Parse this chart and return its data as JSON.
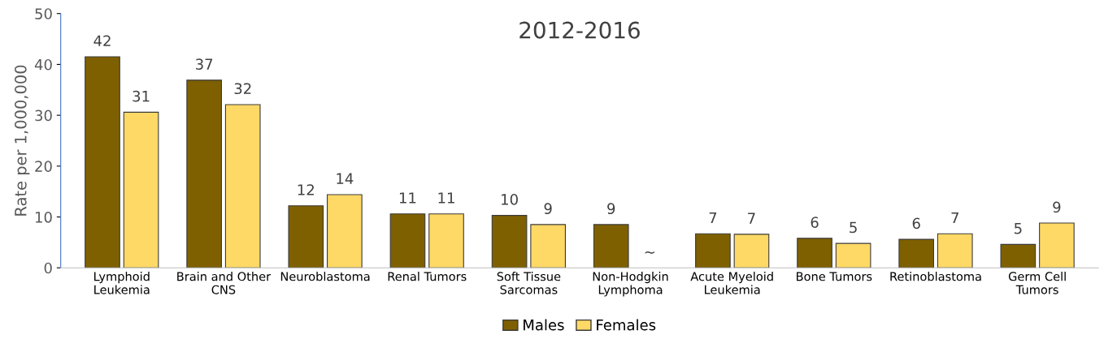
{
  "chart_data": {
    "type": "bar",
    "title": "2012-2016",
    "ylabel": "Rate per 1,000,000",
    "categories": [
      "Lymphoid\nLeukemia",
      "Brain and Other\nCNS",
      "Neuroblastoma",
      "Renal Tumors",
      "Soft Tissue\nSarcomas",
      "Non-Hodgkin\nLymphoma",
      "Acute Myeloid\nLeukemia",
      "Bone Tumors",
      "Retinoblastoma",
      "Germ Cell\nTumors"
    ],
    "series": [
      {
        "name": "Males",
        "color": "#7f6000",
        "values": [
          41.5,
          36.9,
          12.2,
          10.6,
          10.3,
          8.5,
          6.7,
          5.8,
          5.6,
          4.6
        ],
        "value_labels": [
          "42",
          "37",
          "12",
          "11",
          "10",
          "9",
          "7",
          "6",
          "6",
          "5"
        ]
      },
      {
        "name": "Females",
        "color": "#ffd966",
        "values": [
          30.6,
          32.1,
          14.4,
          10.6,
          8.5,
          null,
          6.6,
          4.8,
          6.7,
          8.8
        ],
        "value_labels": [
          "31",
          "32",
          "14",
          "11",
          "9",
          "~",
          "7",
          "5",
          "7",
          "9"
        ]
      }
    ],
    "ylim": [
      0,
      50
    ],
    "yticks": [
      0,
      10,
      20,
      30,
      40,
      50
    ],
    "grid": false,
    "legend": "bottom"
  }
}
